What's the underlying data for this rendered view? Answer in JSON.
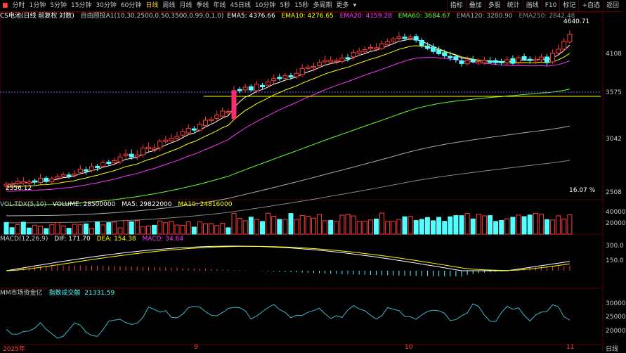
{
  "toolbar": {
    "icon": "menu-icon",
    "periods": [
      "分时",
      "1分钟",
      "5分钟",
      "15分钟",
      "30分钟",
      "60分钟",
      "日线",
      "周线",
      "月线",
      "季线",
      "年线",
      "45日线",
      "10分钟",
      "5秒",
      "15秒",
      "多周期",
      "更多"
    ],
    "active_period": "日线",
    "buttons": [
      "指标",
      "叠加",
      "多股",
      "统计",
      "画线",
      "F10",
      "标记",
      "+自选",
      "返回"
    ]
  },
  "main_indicator": {
    "title": "CS电池(日线 前复权 対数)",
    "formula": "自由顾投A1(10,30,2500,0.50,3500,0.99,0,1,0)",
    "ema5": "EMA5: 4376.66",
    "ema10": "EMA10: 4276.65",
    "ema20": "EMA20: 4159.28",
    "ema60": "EMA60: 3684.67",
    "ema120": "EMA120: 3280.90",
    "ema250": "EMA250: 2842.48",
    "high_label": "4640.71",
    "low_label": "2556.12",
    "pct_label": "16.07 %",
    "y_ticks": [
      "4108",
      "3575",
      "3042",
      "2508"
    ]
  },
  "volume_indicator": {
    "title": "VOL-TDX(5,10)",
    "volume": "VOLUME: 28500000",
    "ma5": "MA5: 29822000",
    "ma10": "MA10: 24816000",
    "y_ticks": [
      "40000",
      "20000"
    ]
  },
  "macd_indicator": {
    "title": "MACD(12,26,9)",
    "dif": "DIF: 171.70",
    "dea": "DEA: 154.38",
    "macd": "MACD: 34.64",
    "y_ticks": [
      "300.0",
      "150.0"
    ]
  },
  "fund_indicator": {
    "title": "MM市场资金亿",
    "label": "指数成交额",
    "value": "21331.59",
    "y_ticks": [
      "30000",
      "25000",
      "20000"
    ]
  },
  "x_axis": {
    "labels": [
      "2025年",
      "9",
      "10",
      "11"
    ]
  },
  "colors": {
    "up": "#ff3c3c",
    "down": "#54ffff",
    "big_up": "#ff2d6f",
    "ema5": "#ffffff",
    "ema10": "#ffff00",
    "ema20": "#ff33ff",
    "ema60": "#66ff33",
    "ema120": "#aaaaaa",
    "ema250": "#888888",
    "macd_dif": "#ffffff",
    "macd_dea": "#ffff00"
  }
}
